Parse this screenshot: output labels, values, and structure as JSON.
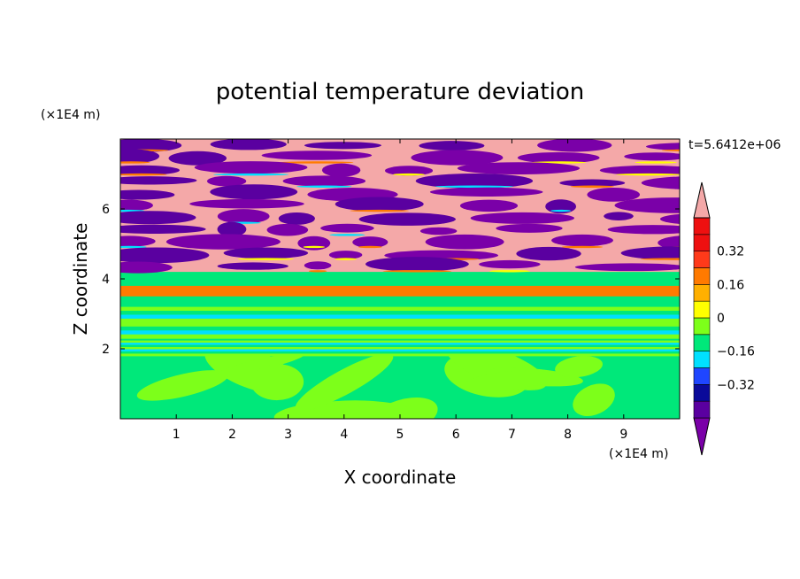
{
  "chart_data": {
    "type": "heatmap",
    "title": "potential temperature deviation",
    "xlabel": "X coordinate",
    "ylabel": "Z coordinate",
    "x_unit": "(×1E4 m)",
    "y_unit": "(×1E4 m)",
    "time_label": "t=5.6412e+06",
    "xlim": [
      0,
      10
    ],
    "ylim": [
      0,
      8
    ],
    "x_ticks": [
      "1",
      "2",
      "3",
      "4",
      "5",
      "6",
      "7",
      "8",
      "9"
    ],
    "y_ticks": [
      "2",
      "4",
      "6"
    ],
    "colorbar": {
      "levels": [
        -0.48,
        -0.4,
        -0.32,
        -0.24,
        -0.16,
        -0.08,
        0,
        0.08,
        0.16,
        0.24,
        0.32,
        0.4,
        0.48
      ],
      "tick_labels": [
        "0.32",
        "0.16",
        "0",
        "−0.16",
        "−0.32"
      ],
      "tick_values": [
        0.32,
        0.16,
        0,
        -0.16,
        -0.32
      ],
      "colors": [
        "#7a00a8",
        "#5a00a0",
        "#0a0a9a",
        "#1f46ff",
        "#00e0ff",
        "#00e87a",
        "#7dff1a",
        "#ffff00",
        "#ffb000",
        "#ff7a00",
        "#ff3a1a",
        "#ee1010",
        "#f4a8a8"
      ]
    },
    "bands": [
      {
        "z_from": 0,
        "z_to": 1.8,
        "pattern": "mix",
        "colors": [
          "#00e87a",
          "#7dff1a"
        ]
      },
      {
        "z_from": 1.8,
        "z_to": 2.3,
        "pattern": "stripes",
        "colors": [
          "#00e87a",
          "#7dff1a",
          "#00e0ff"
        ]
      },
      {
        "z_from": 2.3,
        "z_to": 3.2,
        "pattern": "stripes",
        "colors": [
          "#7dff1a",
          "#00e87a",
          "#00e0ff",
          "#7dff1a"
        ]
      },
      {
        "z_from": 3.5,
        "z_to": 3.8,
        "pattern": "solid",
        "colors": [
          "#ff7a00"
        ]
      },
      {
        "z_from": 4.2,
        "z_to": 8,
        "pattern": "layers",
        "colors": [
          "#f4a8a8",
          "#7a00a8",
          "#5a00a0",
          "#00e0ff",
          "#ff7a00",
          "#ffff00"
        ]
      }
    ]
  }
}
